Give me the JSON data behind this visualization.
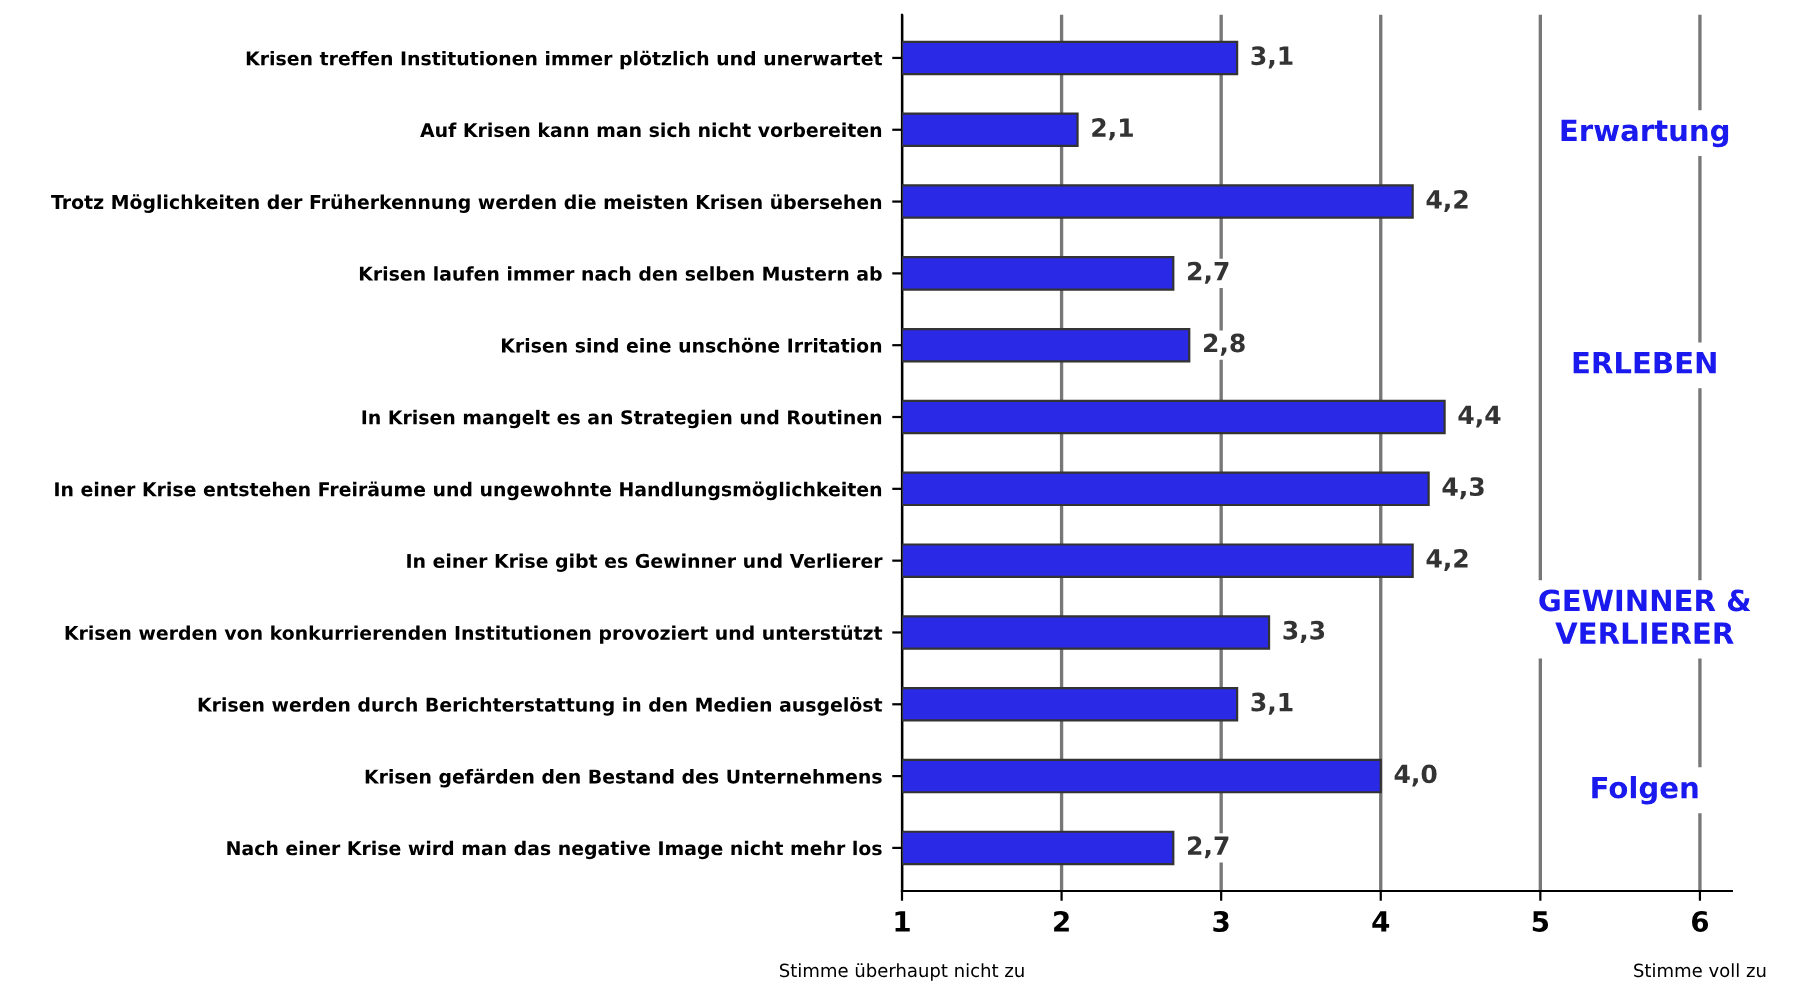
{
  "chart_data": {
    "type": "bar",
    "orientation": "horizontal",
    "categories": [
      "Krisen treffen Institutionen immer plötzlich und unerwartet",
      "Auf Krisen kann man sich nicht vorbereiten",
      "Trotz Möglichkeiten der Früherkennung werden die meisten Krisen übersehen",
      "Krisen laufen immer nach den selben Mustern ab",
      "Krisen sind eine unschöne Irritation",
      "In Krisen mangelt es an Strategien und Routinen",
      "In einer Krise entstehen Freiräume und ungewohnte Handlungsmöglichkeiten",
      "In einer Krise gibt es Gewinner und Verlierer",
      "Krisen werden von konkurrierenden Institutionen provoziert und unterstützt",
      "Krisen werden durch Berichterstattung in den Medien ausgelöst",
      "Krisen gefärden den Bestand des Unternehmens",
      "Nach einer Krise wird man das negative Image nicht mehr los"
    ],
    "values": [
      3.1,
      2.1,
      4.2,
      2.7,
      2.8,
      4.4,
      4.3,
      4.2,
      3.3,
      3.1,
      4.0,
      2.7
    ],
    "value_labels": [
      "3,1",
      "2,1",
      "4,2",
      "2,7",
      "2,8",
      "4,4",
      "4,3",
      "4,2",
      "3,3",
      "3,1",
      "4,0",
      "2,7"
    ],
    "color": "#2a2ae6",
    "xlim": [
      1,
      6.2
    ],
    "xticks": [
      1,
      2,
      3,
      4,
      5,
      6
    ],
    "grid": "x",
    "annotations": [
      "Erwartung",
      "ERLEBEN",
      "GEWINNER &\nVERLIERER",
      "Folgen",
      "Stimme überhaupt nicht zu",
      "Stimme voll zu"
    ]
  }
}
